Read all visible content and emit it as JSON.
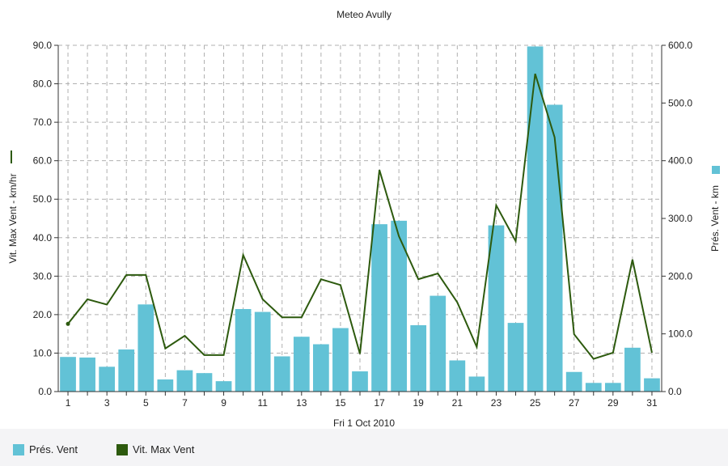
{
  "chart_data": {
    "type": "bar+line",
    "title": "Meteo  Avully",
    "xlabel": "Fri 1 Oct 2010",
    "x_ticks": [
      "1",
      "3",
      "5",
      "7",
      "9",
      "11",
      "13",
      "15",
      "17",
      "19",
      "21",
      "23",
      "25",
      "27",
      "29",
      "31"
    ],
    "days": [
      1,
      2,
      3,
      4,
      5,
      6,
      7,
      8,
      9,
      10,
      11,
      12,
      13,
      14,
      15,
      16,
      17,
      18,
      19,
      20,
      21,
      22,
      23,
      24,
      25,
      26,
      27,
      28,
      29,
      30,
      31
    ],
    "left_axis": {
      "label": "Vit. Max Vent - km/hr",
      "ylim": [
        0,
        90
      ],
      "ticks": [
        "0.0",
        "10.0",
        "20.0",
        "30.0",
        "40.0",
        "50.0",
        "60.0",
        "70.0",
        "80.0",
        "90.0"
      ]
    },
    "right_axis": {
      "label": "Prés. Vent - km",
      "ylim": [
        0,
        600
      ],
      "ticks": [
        "0.0",
        "100.0",
        "200.0",
        "300.0",
        "400.0",
        "500.0",
        "600.0"
      ]
    },
    "series": [
      {
        "name": "Prés. Vent",
        "kind": "bar",
        "axis": "right",
        "color": "#62c2d6",
        "values": [
          60,
          59,
          43,
          73,
          151,
          21,
          37,
          32,
          18,
          143,
          138,
          61,
          95,
          82,
          110,
          35,
          290,
          296,
          115,
          166,
          54,
          26,
          288,
          119,
          598,
          497,
          34,
          15,
          15,
          76,
          23
        ]
      },
      {
        "name": "Vit. Max Vent",
        "kind": "line",
        "axis": "left",
        "color": "#2d5a0e",
        "values": [
          17.6,
          24,
          22.6,
          30.3,
          30.3,
          11.2,
          14.5,
          9.5,
          9.5,
          35.5,
          24,
          19.3,
          19.3,
          29.2,
          27.7,
          9.8,
          57.6,
          40.4,
          29.2,
          30.7,
          23.2,
          11.6,
          48.4,
          39.1,
          82.6,
          66.1,
          14.9,
          8.5,
          10.1,
          34.3,
          10.1
        ]
      }
    ],
    "grid": true,
    "legend_position": "bottom-left",
    "colors": {
      "bar": "#62c2d6",
      "line": "#2d5a0e",
      "grid": "#b0b0b0",
      "axis": "#333333"
    }
  }
}
